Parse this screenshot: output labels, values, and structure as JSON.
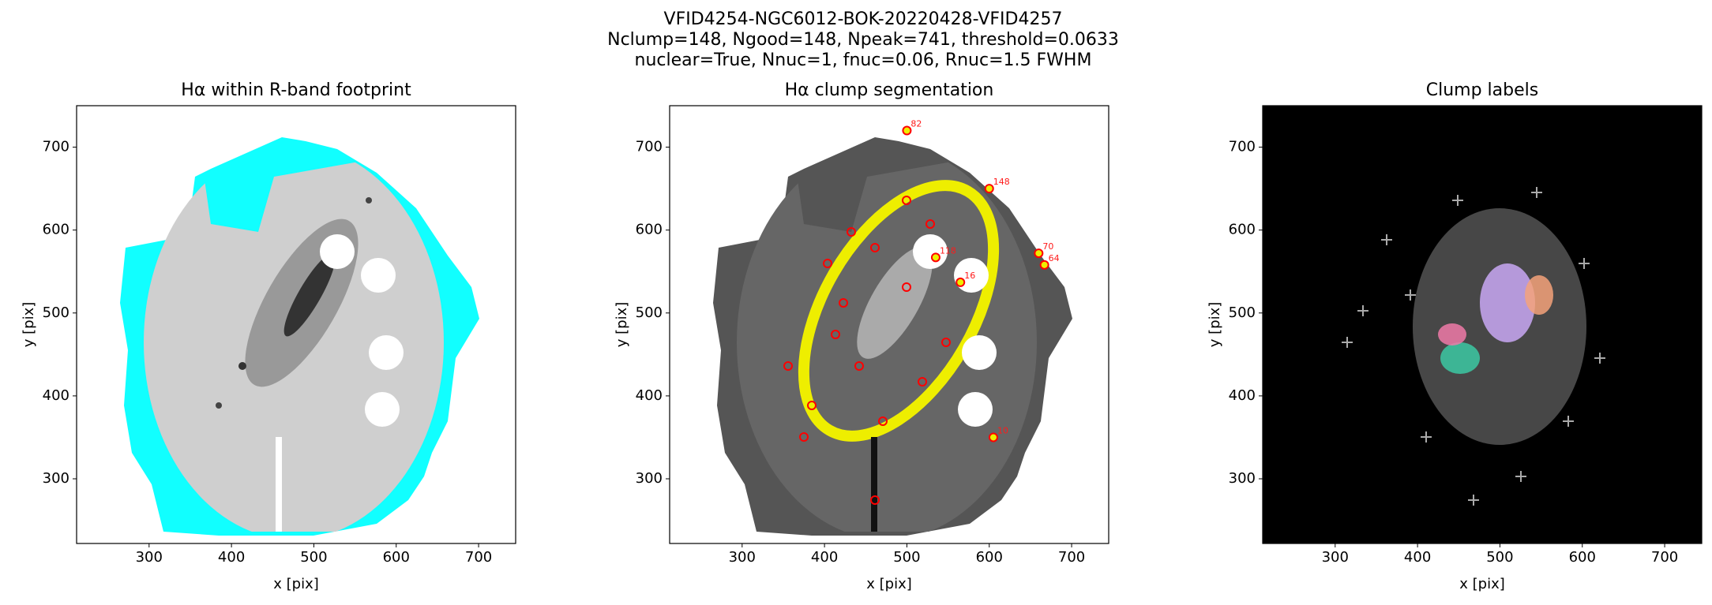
{
  "title_lines": [
    "VFID4254-NGC6012-BOK-20220428-VFID4257",
    "Nclump=148, Ngood=148, Npeak=741, threshold=0.0633",
    "nuclear=True, Nnuc=1, fnuc=0.06, Rnuc=1.5 FWHM"
  ],
  "chart_data": [
    {
      "type": "image",
      "title": "Hα within R-band footprint",
      "xlabel": "x [pix]",
      "ylabel": "y [pix]",
      "xlim": [
        212,
        745
      ],
      "ylim": [
        222,
        750
      ],
      "xticks": [
        300,
        400,
        500,
        600,
        700
      ],
      "yticks": [
        300,
        400,
        500,
        600,
        700
      ]
    },
    {
      "type": "image",
      "title": "Hα clump segmentation",
      "xlabel": "x [pix]",
      "ylabel": "y [pix]",
      "xlim": [
        212,
        745
      ],
      "ylim": [
        222,
        750
      ],
      "xticks": [
        300,
        400,
        500,
        600,
        700
      ],
      "yticks": [
        300,
        400,
        500,
        600,
        700
      ],
      "annotations": [
        {
          "text": "82",
          "x": 500,
          "y": 720
        },
        {
          "text": "148",
          "x": 600,
          "y": 650
        },
        {
          "text": "70",
          "x": 660,
          "y": 572
        },
        {
          "text": "64",
          "x": 667,
          "y": 558
        },
        {
          "text": "118",
          "x": 535,
          "y": 567
        },
        {
          "text": "16",
          "x": 565,
          "y": 537
        },
        {
          "text": "10",
          "x": 605,
          "y": 350
        }
      ]
    },
    {
      "type": "image",
      "title": "Clump labels",
      "xlabel": "x [pix]",
      "ylabel": "y [pix]",
      "xlim": [
        212,
        745
      ],
      "ylim": [
        222,
        750
      ],
      "xticks": [
        300,
        400,
        500,
        600,
        700
      ],
      "yticks": [
        300,
        400,
        500,
        600,
        700
      ]
    }
  ]
}
